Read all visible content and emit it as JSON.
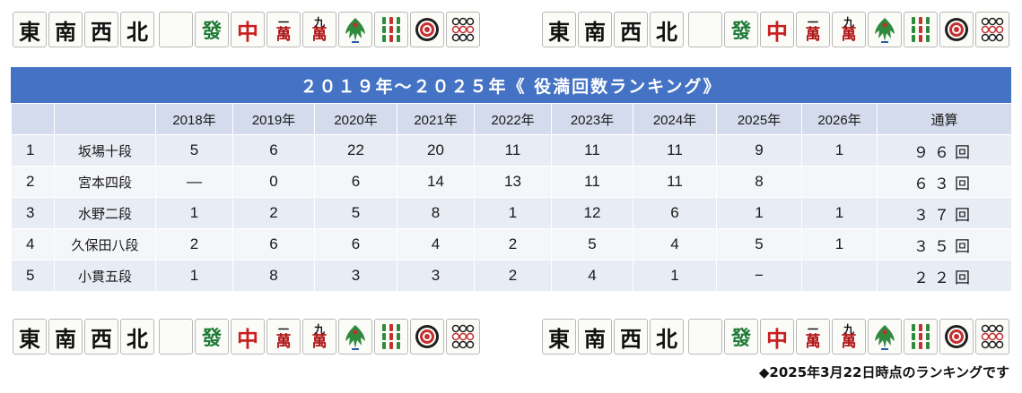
{
  "tiles": {
    "winds": [
      "東",
      "南",
      "西",
      "北"
    ],
    "hatsu": "發",
    "chun": "中",
    "man1": {
      "num": "一",
      "suit": "萬"
    },
    "man9": {
      "num": "九",
      "suit": "萬"
    }
  },
  "title": "２０１９年～２０２５年《 役満回数ランキング》",
  "table": {
    "headers": [
      "",
      "",
      "2018年",
      "2019年",
      "2020年",
      "2021年",
      "2022年",
      "2023年",
      "2024年",
      "2025年",
      "2026年",
      "通算"
    ],
    "rows": [
      [
        "1",
        "坂場十段",
        "5",
        "6",
        "22",
        "20",
        "11",
        "11",
        "11",
        "9",
        "1",
        "９６回"
      ],
      [
        "2",
        "宮本四段",
        "―",
        "0",
        "6",
        "14",
        "13",
        "11",
        "11",
        "8",
        "",
        "６３回"
      ],
      [
        "3",
        "水野二段",
        "1",
        "2",
        "5",
        "8",
        "1",
        "12",
        "6",
        "1",
        "1",
        "３７回"
      ],
      [
        "4",
        "久保田八段",
        "2",
        "6",
        "6",
        "4",
        "2",
        "5",
        "4",
        "5",
        "1",
        "３５回"
      ],
      [
        "5",
        "小貫五段",
        "1",
        "8",
        "3",
        "3",
        "2",
        "4",
        "1",
        "−",
        "",
        "２２回"
      ]
    ]
  },
  "footnote": "◆2025年3月22日時点のランキングです"
}
